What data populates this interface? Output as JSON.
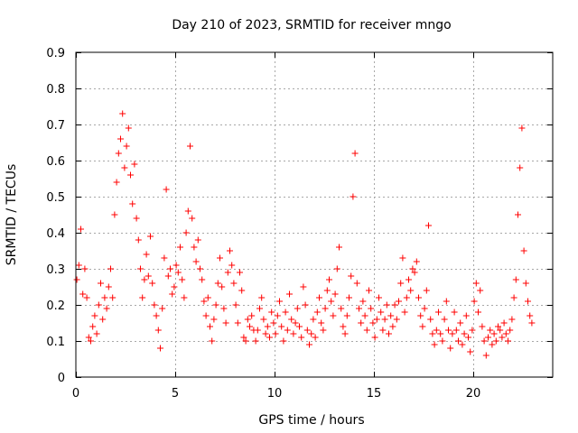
{
  "chart_data": {
    "type": "scatter",
    "title": "Day 210 of 2023, SRMTID for receiver mngo",
    "xlabel": "GPS time / hours",
    "ylabel": "SRMTID / TECUs",
    "xlim": [
      0,
      24
    ],
    "ylim": [
      0,
      0.9
    ],
    "xticks": [
      0,
      5,
      10,
      15,
      20
    ],
    "xtick_labels": [
      "0",
      "5",
      "10",
      "15",
      "20"
    ],
    "yticks": [
      0,
      0.1,
      0.2,
      0.3,
      0.4,
      0.5,
      0.6,
      0.7,
      0.8,
      0.9
    ],
    "ytick_labels": [
      "0",
      "0.1",
      "0.2",
      "0.3",
      "0.4",
      "0.5",
      "0.6",
      "0.7",
      "0.8",
      "0.9"
    ],
    "grid": true,
    "marker": "+",
    "color": "#ff0000",
    "series": [
      {
        "name": "SRMTID",
        "points": [
          [
            0.05,
            0.27
          ],
          [
            0.15,
            0.31
          ],
          [
            0.25,
            0.41
          ],
          [
            0.35,
            0.23
          ],
          [
            0.45,
            0.3
          ],
          [
            0.55,
            0.22
          ],
          [
            0.65,
            0.11
          ],
          [
            0.75,
            0.1
          ],
          [
            0.85,
            0.14
          ],
          [
            0.95,
            0.17
          ],
          [
            1.05,
            0.12
          ],
          [
            1.15,
            0.2
          ],
          [
            1.25,
            0.26
          ],
          [
            1.35,
            0.16
          ],
          [
            1.45,
            0.22
          ],
          [
            1.55,
            0.19
          ],
          [
            1.65,
            0.25
          ],
          [
            1.75,
            0.3
          ],
          [
            1.85,
            0.22
          ],
          [
            1.95,
            0.45
          ],
          [
            2.05,
            0.54
          ],
          [
            2.15,
            0.62
          ],
          [
            2.25,
            0.66
          ],
          [
            2.35,
            0.73
          ],
          [
            2.45,
            0.58
          ],
          [
            2.55,
            0.64
          ],
          [
            2.65,
            0.69
          ],
          [
            2.75,
            0.56
          ],
          [
            2.85,
            0.48
          ],
          [
            2.95,
            0.59
          ],
          [
            3.05,
            0.44
          ],
          [
            3.15,
            0.38
          ],
          [
            3.25,
            0.3
          ],
          [
            3.35,
            0.22
          ],
          [
            3.45,
            0.27
          ],
          [
            3.55,
            0.34
          ],
          [
            3.65,
            0.28
          ],
          [
            3.75,
            0.39
          ],
          [
            3.85,
            0.26
          ],
          [
            3.95,
            0.2
          ],
          [
            4.05,
            0.17
          ],
          [
            4.15,
            0.13
          ],
          [
            4.25,
            0.08
          ],
          [
            4.35,
            0.19
          ],
          [
            4.45,
            0.33
          ],
          [
            4.55,
            0.52
          ],
          [
            4.65,
            0.28
          ],
          [
            4.75,
            0.3
          ],
          [
            4.85,
            0.23
          ],
          [
            4.95,
            0.25
          ],
          [
            5.05,
            0.31
          ],
          [
            5.15,
            0.29
          ],
          [
            5.25,
            0.36
          ],
          [
            5.35,
            0.27
          ],
          [
            5.45,
            0.22
          ],
          [
            5.55,
            0.4
          ],
          [
            5.65,
            0.46
          ],
          [
            5.75,
            0.64
          ],
          [
            5.85,
            0.44
          ],
          [
            5.95,
            0.36
          ],
          [
            6.05,
            0.32
          ],
          [
            6.15,
            0.38
          ],
          [
            6.25,
            0.3
          ],
          [
            6.35,
            0.27
          ],
          [
            6.45,
            0.21
          ],
          [
            6.55,
            0.17
          ],
          [
            6.65,
            0.22
          ],
          [
            6.75,
            0.14
          ],
          [
            6.85,
            0.1
          ],
          [
            6.95,
            0.16
          ],
          [
            7.05,
            0.2
          ],
          [
            7.15,
            0.26
          ],
          [
            7.25,
            0.33
          ],
          [
            7.35,
            0.25
          ],
          [
            7.45,
            0.19
          ],
          [
            7.55,
            0.15
          ],
          [
            7.65,
            0.29
          ],
          [
            7.75,
            0.35
          ],
          [
            7.85,
            0.31
          ],
          [
            7.95,
            0.26
          ],
          [
            8.05,
            0.2
          ],
          [
            8.15,
            0.15
          ],
          [
            8.25,
            0.29
          ],
          [
            8.35,
            0.24
          ],
          [
            8.45,
            0.11
          ],
          [
            8.55,
            0.1
          ],
          [
            8.65,
            0.16
          ],
          [
            8.75,
            0.14
          ],
          [
            8.85,
            0.17
          ],
          [
            8.95,
            0.13
          ],
          [
            9.05,
            0.1
          ],
          [
            9.15,
            0.13
          ],
          [
            9.25,
            0.19
          ],
          [
            9.35,
            0.22
          ],
          [
            9.45,
            0.16
          ],
          [
            9.55,
            0.12
          ],
          [
            9.65,
            0.14
          ],
          [
            9.75,
            0.11
          ],
          [
            9.85,
            0.18
          ],
          [
            9.95,
            0.15
          ],
          [
            10.05,
            0.12
          ],
          [
            10.15,
            0.17
          ],
          [
            10.25,
            0.21
          ],
          [
            10.35,
            0.14
          ],
          [
            10.45,
            0.1
          ],
          [
            10.55,
            0.18
          ],
          [
            10.65,
            0.13
          ],
          [
            10.75,
            0.23
          ],
          [
            10.85,
            0.16
          ],
          [
            10.95,
            0.12
          ],
          [
            11.05,
            0.15
          ],
          [
            11.15,
            0.19
          ],
          [
            11.25,
            0.14
          ],
          [
            11.35,
            0.11
          ],
          [
            11.45,
            0.25
          ],
          [
            11.55,
            0.2
          ],
          [
            11.65,
            0.13
          ],
          [
            11.75,
            0.09
          ],
          [
            11.85,
            0.12
          ],
          [
            11.95,
            0.16
          ],
          [
            12.05,
            0.11
          ],
          [
            12.15,
            0.18
          ],
          [
            12.25,
            0.22
          ],
          [
            12.35,
            0.15
          ],
          [
            12.45,
            0.13
          ],
          [
            12.55,
            0.19
          ],
          [
            12.65,
            0.24
          ],
          [
            12.75,
            0.27
          ],
          [
            12.85,
            0.21
          ],
          [
            12.95,
            0.17
          ],
          [
            13.05,
            0.23
          ],
          [
            13.15,
            0.3
          ],
          [
            13.25,
            0.36
          ],
          [
            13.35,
            0.19
          ],
          [
            13.45,
            0.14
          ],
          [
            13.55,
            0.12
          ],
          [
            13.65,
            0.17
          ],
          [
            13.75,
            0.22
          ],
          [
            13.85,
            0.28
          ],
          [
            13.95,
            0.5
          ],
          [
            14.05,
            0.62
          ],
          [
            14.15,
            0.26
          ],
          [
            14.25,
            0.19
          ],
          [
            14.35,
            0.15
          ],
          [
            14.45,
            0.21
          ],
          [
            14.55,
            0.17
          ],
          [
            14.65,
            0.13
          ],
          [
            14.75,
            0.24
          ],
          [
            14.85,
            0.19
          ],
          [
            14.95,
            0.15
          ],
          [
            15.05,
            0.11
          ],
          [
            15.15,
            0.16
          ],
          [
            15.25,
            0.22
          ],
          [
            15.35,
            0.18
          ],
          [
            15.45,
            0.13
          ],
          [
            15.55,
            0.16
          ],
          [
            15.65,
            0.2
          ],
          [
            15.75,
            0.12
          ],
          [
            15.85,
            0.17
          ],
          [
            15.95,
            0.14
          ],
          [
            16.05,
            0.2
          ],
          [
            16.15,
            0.16
          ],
          [
            16.25,
            0.21
          ],
          [
            16.35,
            0.26
          ],
          [
            16.45,
            0.33
          ],
          [
            16.55,
            0.18
          ],
          [
            16.65,
            0.22
          ],
          [
            16.75,
            0.27
          ],
          [
            16.85,
            0.24
          ],
          [
            16.95,
            0.3
          ],
          [
            17.05,
            0.29
          ],
          [
            17.15,
            0.32
          ],
          [
            17.25,
            0.22
          ],
          [
            17.35,
            0.17
          ],
          [
            17.45,
            0.14
          ],
          [
            17.55,
            0.19
          ],
          [
            17.65,
            0.24
          ],
          [
            17.75,
            0.42
          ],
          [
            17.85,
            0.16
          ],
          [
            17.95,
            0.12
          ],
          [
            18.05,
            0.09
          ],
          [
            18.15,
            0.13
          ],
          [
            18.25,
            0.18
          ],
          [
            18.35,
            0.12
          ],
          [
            18.45,
            0.1
          ],
          [
            18.55,
            0.16
          ],
          [
            18.65,
            0.21
          ],
          [
            18.75,
            0.13
          ],
          [
            18.85,
            0.08
          ],
          [
            18.95,
            0.12
          ],
          [
            19.05,
            0.18
          ],
          [
            19.15,
            0.13
          ],
          [
            19.25,
            0.1
          ],
          [
            19.35,
            0.15
          ],
          [
            19.45,
            0.09
          ],
          [
            19.55,
            0.12
          ],
          [
            19.65,
            0.17
          ],
          [
            19.75,
            0.11
          ],
          [
            19.85,
            0.07
          ],
          [
            19.95,
            0.13
          ],
          [
            20.05,
            0.21
          ],
          [
            20.15,
            0.26
          ],
          [
            20.25,
            0.18
          ],
          [
            20.35,
            0.24
          ],
          [
            20.45,
            0.14
          ],
          [
            20.55,
            0.1
          ],
          [
            20.65,
            0.06
          ],
          [
            20.75,
            0.11
          ],
          [
            20.85,
            0.13
          ],
          [
            20.95,
            0.09
          ],
          [
            21.05,
            0.12
          ],
          [
            21.15,
            0.1
          ],
          [
            21.25,
            0.14
          ],
          [
            21.35,
            0.13
          ],
          [
            21.45,
            0.11
          ],
          [
            21.55,
            0.15
          ],
          [
            21.65,
            0.12
          ],
          [
            21.75,
            0.1
          ],
          [
            21.85,
            0.13
          ],
          [
            21.95,
            0.16
          ],
          [
            22.05,
            0.22
          ],
          [
            22.15,
            0.27
          ],
          [
            22.25,
            0.45
          ],
          [
            22.35,
            0.58
          ],
          [
            22.45,
            0.69
          ],
          [
            22.55,
            0.35
          ],
          [
            22.65,
            0.26
          ],
          [
            22.75,
            0.21
          ],
          [
            22.85,
            0.17
          ],
          [
            22.95,
            0.15
          ]
        ]
      }
    ]
  }
}
